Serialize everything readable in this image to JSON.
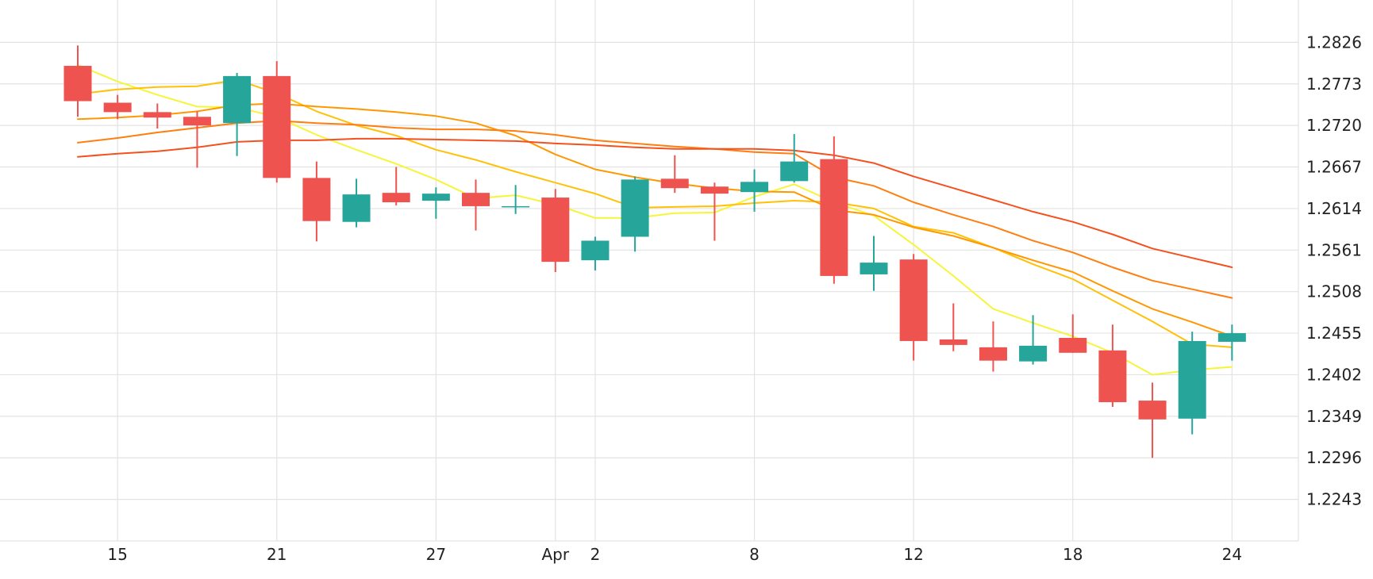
{
  "chart_data": {
    "type": "candlestick",
    "title": "",
    "xlabel": "",
    "ylabel": "",
    "grid": true,
    "legend": "none",
    "colors": {
      "up": "#26a69a",
      "down": "#ef5350",
      "grid": "#e3e3e3",
      "ma": [
        "#f5f53a",
        "#ffc107",
        "#ff9800",
        "#ff7e10",
        "#f4511e"
      ]
    },
    "ylim": [
      1.219,
      1.288
    ],
    "y_ticks": [
      "1.2826",
      "1.2773",
      "1.2720",
      "1.2667",
      "1.2614",
      "1.2561",
      "1.2508",
      "1.2455",
      "1.2402",
      "1.2349",
      "1.2296",
      "1.2243"
    ],
    "x_ticks": [
      {
        "label": "15",
        "x": 1
      },
      {
        "label": "21",
        "x": 5
      },
      {
        "label": "27",
        "x": 9
      },
      {
        "label": "Apr",
        "x": 12
      },
      {
        "label": "2",
        "x": 13
      },
      {
        "label": "8",
        "x": 17
      },
      {
        "label": "12",
        "x": 21
      },
      {
        "label": "18",
        "x": 25
      },
      {
        "label": "24",
        "x": 29
      }
    ],
    "candles": [
      {
        "x": 0,
        "open": 1.2796,
        "high": 1.2822,
        "low": 1.2731,
        "close": 1.2751
      },
      {
        "x": 1,
        "open": 1.2749,
        "high": 1.2759,
        "low": 1.2728,
        "close": 1.2737
      },
      {
        "x": 2,
        "open": 1.2737,
        "high": 1.2748,
        "low": 1.2716,
        "close": 1.273
      },
      {
        "x": 3,
        "open": 1.2731,
        "high": 1.2738,
        "low": 1.2666,
        "close": 1.272
      },
      {
        "x": 4,
        "open": 1.2723,
        "high": 1.2787,
        "low": 1.2681,
        "close": 1.2783
      },
      {
        "x": 5,
        "open": 1.2783,
        "high": 1.2802,
        "low": 1.2647,
        "close": 1.2653
      },
      {
        "x": 6,
        "open": 1.2653,
        "high": 1.2674,
        "low": 1.2572,
        "close": 1.2598
      },
      {
        "x": 7,
        "open": 1.2597,
        "high": 1.2652,
        "low": 1.259,
        "close": 1.2632
      },
      {
        "x": 8,
        "open": 1.2634,
        "high": 1.2667,
        "low": 1.2618,
        "close": 1.2622
      },
      {
        "x": 9,
        "open": 1.2624,
        "high": 1.2641,
        "low": 1.2601,
        "close": 1.2633
      },
      {
        "x": 10,
        "open": 1.2634,
        "high": 1.2651,
        "low": 1.2586,
        "close": 1.2617
      },
      {
        "x": 11,
        "open": 1.2616,
        "high": 1.2644,
        "low": 1.2607,
        "close": 1.2617
      },
      {
        "x": 12,
        "open": 1.2628,
        "high": 1.2639,
        "low": 1.2533,
        "close": 1.2546
      },
      {
        "x": 13,
        "open": 1.2548,
        "high": 1.2578,
        "low": 1.2535,
        "close": 1.2573
      },
      {
        "x": 14,
        "open": 1.2578,
        "high": 1.2655,
        "low": 1.2559,
        "close": 1.2651
      },
      {
        "x": 15,
        "open": 1.2652,
        "high": 1.2682,
        "low": 1.2634,
        "close": 1.264
      },
      {
        "x": 16,
        "open": 1.2642,
        "high": 1.2647,
        "low": 1.2573,
        "close": 1.2633
      },
      {
        "x": 17,
        "open": 1.2635,
        "high": 1.2664,
        "low": 1.261,
        "close": 1.2648
      },
      {
        "x": 18,
        "open": 1.2649,
        "high": 1.2709,
        "low": 1.2647,
        "close": 1.2674
      },
      {
        "x": 19,
        "open": 1.2677,
        "high": 1.2706,
        "low": 1.2518,
        "close": 1.2528
      },
      {
        "x": 20,
        "open": 1.253,
        "high": 1.2579,
        "low": 1.2509,
        "close": 1.2545
      },
      {
        "x": 21,
        "open": 1.2549,
        "high": 1.2556,
        "low": 1.242,
        "close": 1.2445
      },
      {
        "x": 22,
        "open": 1.2447,
        "high": 1.2493,
        "low": 1.2432,
        "close": 1.244
      },
      {
        "x": 23,
        "open": 1.2437,
        "high": 1.247,
        "low": 1.2406,
        "close": 1.242
      },
      {
        "x": 24,
        "open": 1.2419,
        "high": 1.2478,
        "low": 1.2415,
        "close": 1.2439
      },
      {
        "x": 25,
        "open": 1.2449,
        "high": 1.2479,
        "low": 1.243,
        "close": 1.243
      },
      {
        "x": 26,
        "open": 1.2433,
        "high": 1.2466,
        "low": 1.2361,
        "close": 1.2367
      },
      {
        "x": 27,
        "open": 1.2369,
        "high": 1.2392,
        "low": 1.2296,
        "close": 1.2345
      },
      {
        "x": 28,
        "open": 1.2346,
        "high": 1.2457,
        "low": 1.2326,
        "close": 1.2445
      },
      {
        "x": 29,
        "open": 1.2444,
        "high": 1.2466,
        "low": 1.242,
        "close": 1.2455
      }
    ],
    "series": [
      {
        "values": [
          1.2797,
          1.2776,
          1.2759,
          1.2744,
          1.2743,
          1.2731,
          1.2708,
          1.2689,
          1.2671,
          1.2651,
          1.2627,
          1.2631,
          1.2619,
          1.2602,
          1.2602,
          1.2608,
          1.2609,
          1.2629,
          1.2645,
          1.2622,
          1.2605,
          1.2568,
          1.2528,
          1.2486,
          1.2468,
          1.2451,
          1.243,
          1.2402,
          1.2408,
          1.2412
        ]
      },
      {
        "values": [
          1.276,
          1.2766,
          1.2769,
          1.277,
          1.2778,
          1.2761,
          1.2738,
          1.272,
          1.2707,
          1.2689,
          1.2676,
          1.2661,
          1.2647,
          1.2633,
          1.2615,
          1.2616,
          1.2617,
          1.2621,
          1.2624,
          1.2622,
          1.2614,
          1.2591,
          1.2583,
          1.2564,
          1.2543,
          1.2524,
          1.2497,
          1.247,
          1.2441,
          1.2437
        ]
      },
      {
        "values": [
          1.2728,
          1.273,
          1.2733,
          1.2738,
          1.2746,
          1.2748,
          1.2744,
          1.2741,
          1.2737,
          1.2732,
          1.2723,
          1.2707,
          1.2683,
          1.2664,
          1.2654,
          1.2646,
          1.264,
          1.2636,
          1.2635,
          1.2612,
          1.2606,
          1.259,
          1.2579,
          1.2564,
          1.2548,
          1.2533,
          1.2509,
          1.2486,
          1.2469,
          1.2451
        ]
      },
      {
        "values": [
          1.2698,
          1.2704,
          1.2711,
          1.2717,
          1.2723,
          1.2726,
          1.2723,
          1.2721,
          1.2717,
          1.2715,
          1.2715,
          1.2713,
          1.2708,
          1.2701,
          1.2697,
          1.2693,
          1.269,
          1.2686,
          1.2684,
          1.2654,
          1.2643,
          1.2622,
          1.2606,
          1.2591,
          1.2573,
          1.2558,
          1.2539,
          1.2522,
          1.2511,
          1.25
        ]
      },
      {
        "values": [
          1.268,
          1.2684,
          1.2687,
          1.2692,
          1.2699,
          1.2701,
          1.2701,
          1.2703,
          1.2703,
          1.2702,
          1.2701,
          1.27,
          1.2697,
          1.2695,
          1.2692,
          1.269,
          1.269,
          1.269,
          1.2688,
          1.2682,
          1.2672,
          1.2655,
          1.264,
          1.2625,
          1.261,
          1.2597,
          1.2581,
          1.2563,
          1.2551,
          1.2539
        ]
      }
    ]
  }
}
